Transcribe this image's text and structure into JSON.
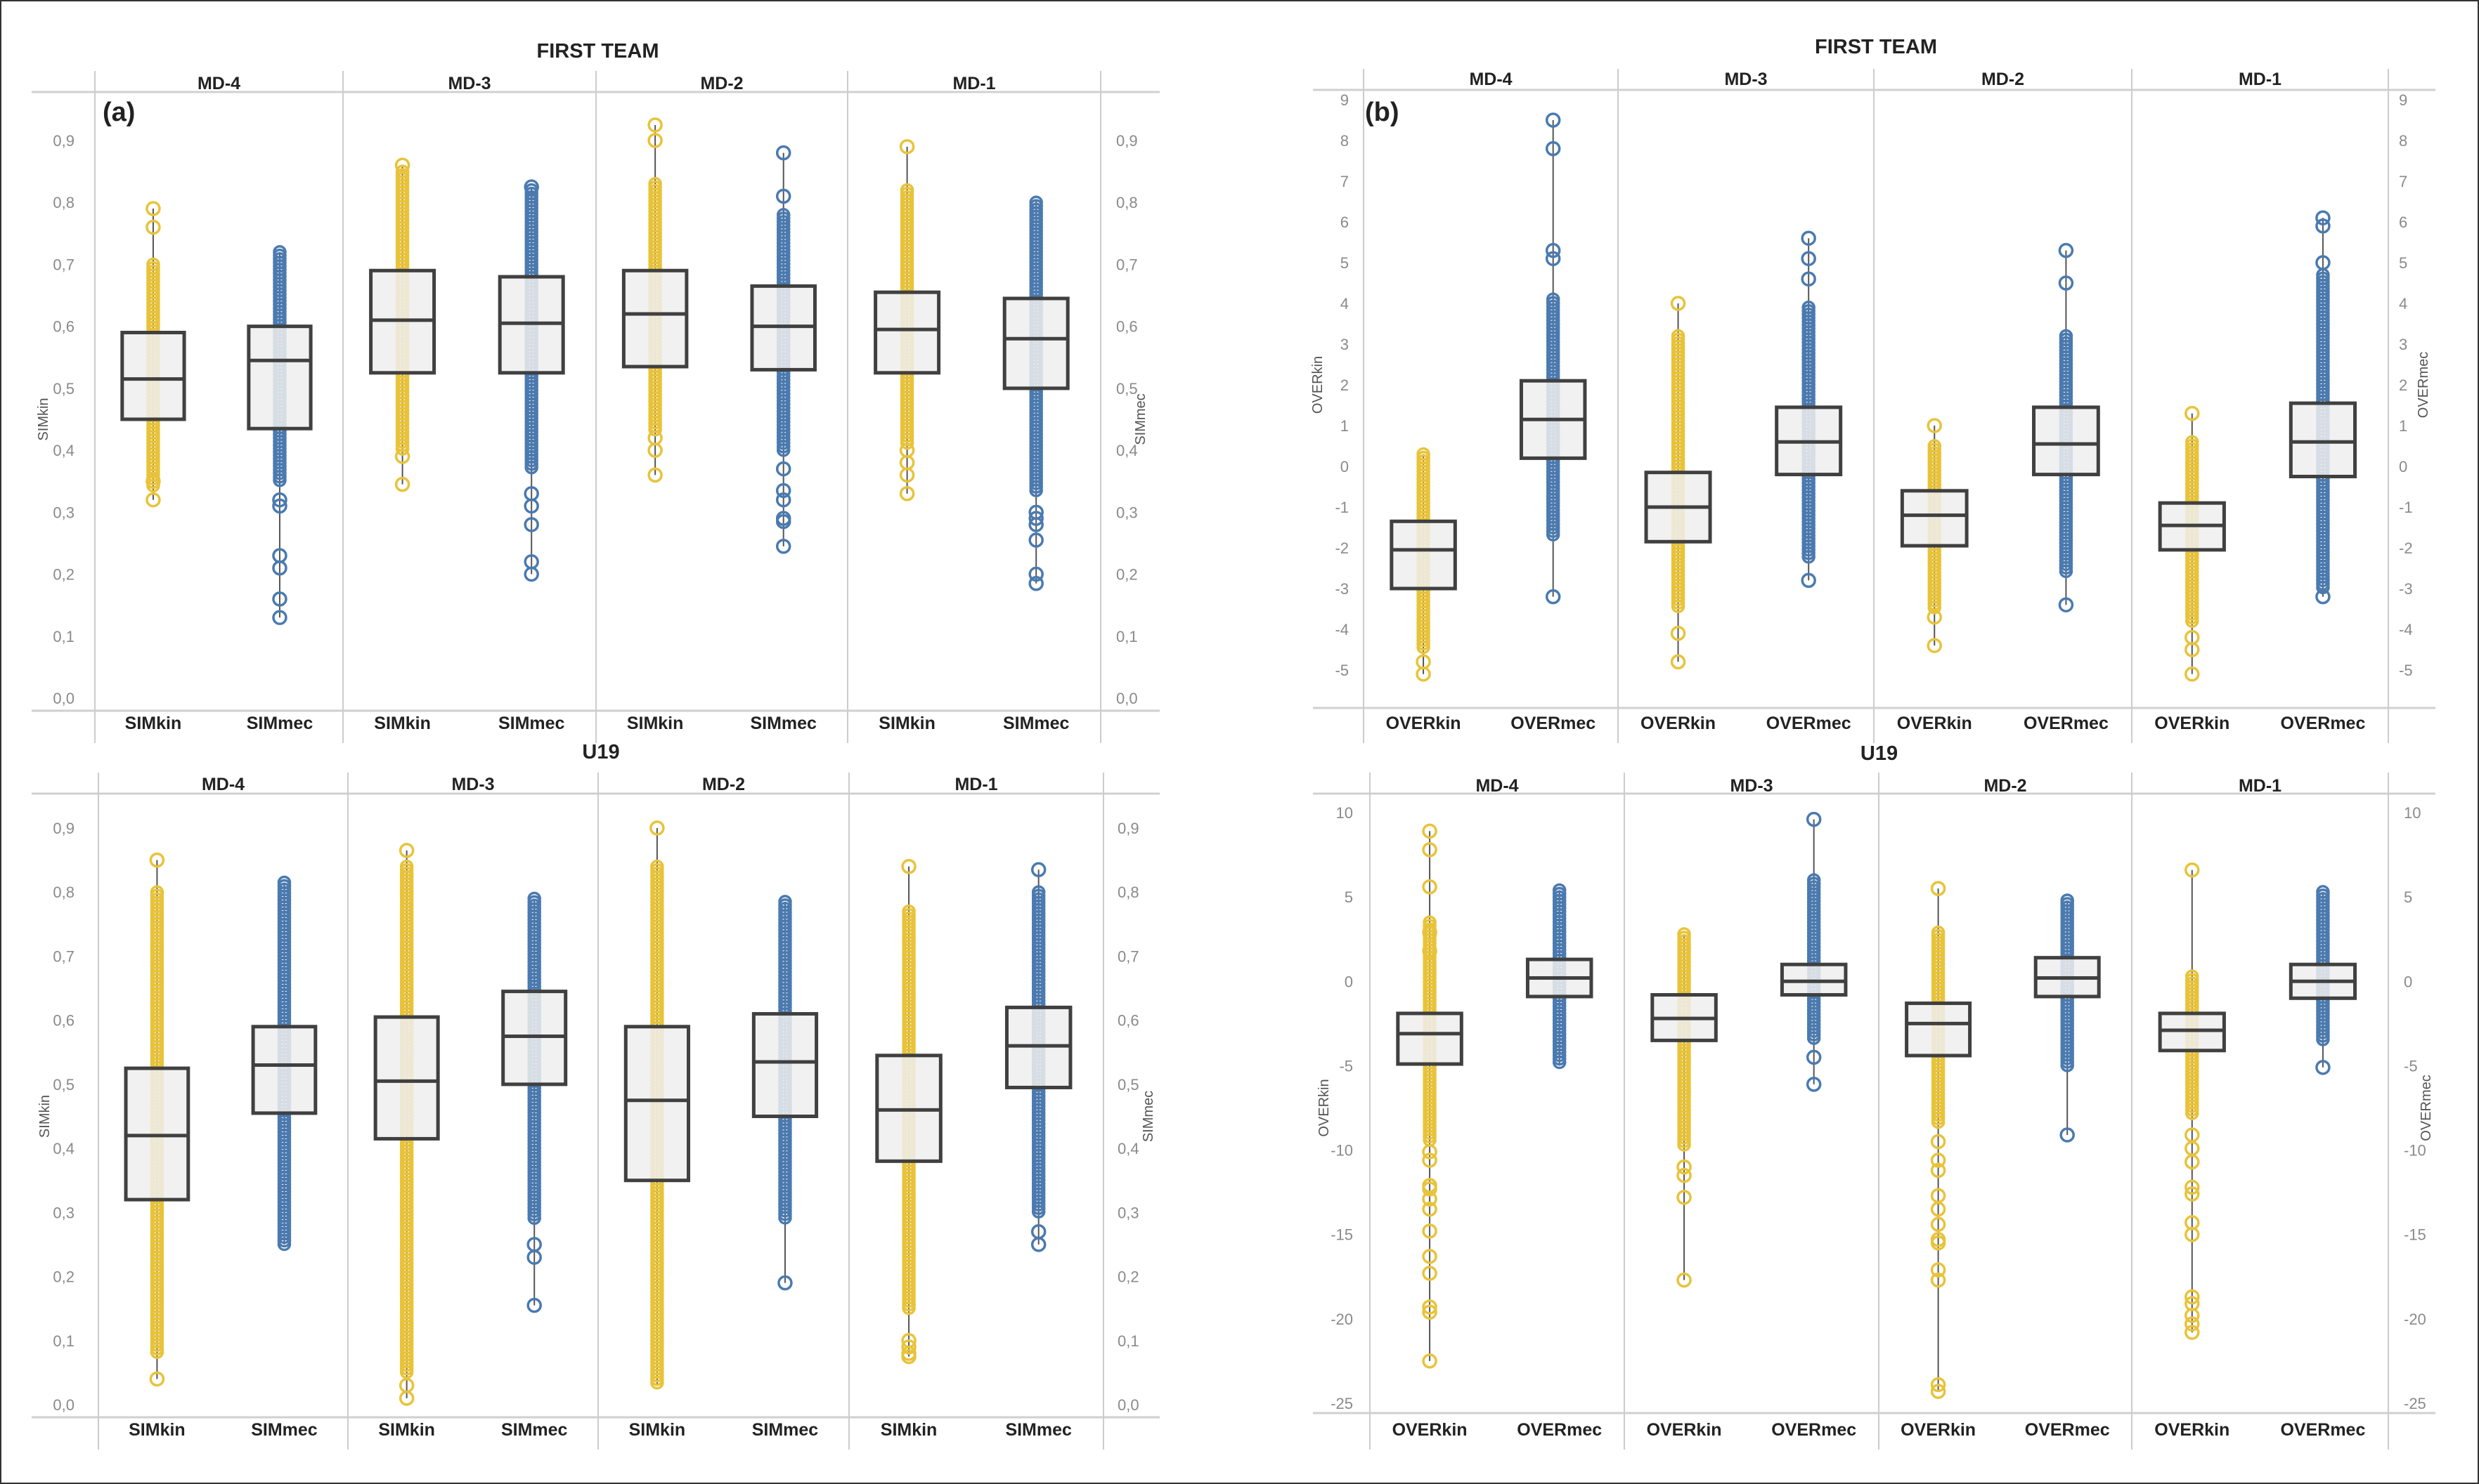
{
  "colors": {
    "kin": "#E8C33A",
    "mec": "#4A7AB0",
    "box_fill": "#EEEEEE",
    "box_stroke": "#404040",
    "grid": "#CCCCCC"
  },
  "chart_data": [
    {
      "type": "box",
      "letter": "(a)",
      "title": "FIRST TEAM",
      "ylabel_left": "SIMkin",
      "ylabel_right": "SIMmec",
      "ylim": [
        0,
        0.9
      ],
      "yticks": [
        0,
        0.1,
        0.2,
        0.3,
        0.4,
        0.5,
        0.6,
        0.7,
        0.8,
        0.9
      ],
      "yticklabels": [
        "0,0",
        "0,1",
        "0,2",
        "0,3",
        "0,4",
        "0,5",
        "0,6",
        "0,7",
        "0,8",
        "0,9"
      ],
      "groups": [
        {
          "label": "MD-4",
          "boxes": [
            {
              "label": "SIMkin",
              "series": "kin",
              "q1": 0.45,
              "median": 0.515,
              "q3": 0.59,
              "whisker_low": 0.32,
              "whisker_high": 0.79,
              "dense": [
                0.34,
                0.7
              ],
              "points": [
                0.32,
                0.35,
                0.76,
                0.79
              ]
            },
            {
              "label": "SIMmec",
              "series": "mec",
              "q1": 0.435,
              "median": 0.545,
              "q3": 0.6,
              "whisker_low": 0.13,
              "whisker_high": 0.72,
              "dense": [
                0.35,
                0.72
              ],
              "points": [
                0.13,
                0.16,
                0.21,
                0.23,
                0.31,
                0.32
              ]
            }
          ]
        },
        {
          "label": "MD-3",
          "boxes": [
            {
              "label": "SIMkin",
              "series": "kin",
              "q1": 0.525,
              "median": 0.61,
              "q3": 0.69,
              "whisker_low": 0.345,
              "whisker_high": 0.86,
              "dense": [
                0.4,
                0.85
              ],
              "points": [
                0.345,
                0.39,
                0.86
              ]
            },
            {
              "label": "SIMmec",
              "series": "mec",
              "q1": 0.525,
              "median": 0.605,
              "q3": 0.68,
              "whisker_low": 0.2,
              "whisker_high": 0.825,
              "dense": [
                0.37,
                0.82
              ],
              "points": [
                0.2,
                0.22,
                0.28,
                0.31,
                0.33,
                0.825
              ]
            }
          ]
        },
        {
          "label": "MD-2",
          "boxes": [
            {
              "label": "SIMkin",
              "series": "kin",
              "q1": 0.535,
              "median": 0.62,
              "q3": 0.69,
              "whisker_low": 0.36,
              "whisker_high": 0.925,
              "dense": [
                0.43,
                0.83
              ],
              "points": [
                0.36,
                0.4,
                0.42,
                0.9,
                0.925
              ]
            },
            {
              "label": "SIMmec",
              "series": "mec",
              "q1": 0.53,
              "median": 0.6,
              "q3": 0.665,
              "whisker_low": 0.245,
              "whisker_high": 0.88,
              "dense": [
                0.4,
                0.78
              ],
              "points": [
                0.245,
                0.285,
                0.29,
                0.32,
                0.335,
                0.37,
                0.81,
                0.88
              ]
            }
          ]
        },
        {
          "label": "MD-1",
          "boxes": [
            {
              "label": "SIMkin",
              "series": "kin",
              "q1": 0.525,
              "median": 0.595,
              "q3": 0.655,
              "whisker_low": 0.33,
              "whisker_high": 0.89,
              "dense": [
                0.41,
                0.82
              ],
              "points": [
                0.33,
                0.36,
                0.38,
                0.4,
                0.89
              ]
            },
            {
              "label": "SIMmec",
              "series": "mec",
              "q1": 0.5,
              "median": 0.58,
              "q3": 0.645,
              "whisker_low": 0.185,
              "whisker_high": 0.805,
              "dense": [
                0.33,
                0.8
              ],
              "points": [
                0.185,
                0.2,
                0.255,
                0.28,
                0.29,
                0.3
              ]
            }
          ]
        }
      ]
    },
    {
      "type": "box",
      "letter": "(b)",
      "title": "FIRST TEAM",
      "ylabel_left": "OVERkin",
      "ylabel_right": "OVERmec",
      "ylim": [
        -5,
        9
      ],
      "yticks": [
        -5,
        -4,
        -3,
        -2,
        -1,
        0,
        1,
        2,
        3,
        4,
        5,
        6,
        7,
        8,
        9
      ],
      "yticklabels": [
        "-5",
        "-4",
        "-3",
        "-2",
        "-1",
        "0",
        "1",
        "2",
        "3",
        "4",
        "5",
        "6",
        "7",
        "8",
        "9"
      ],
      "groups": [
        {
          "label": "MD-4",
          "boxes": [
            {
              "label": "OVERkin",
              "series": "kin",
              "q1": -3.0,
              "median": -2.05,
              "q3": -1.35,
              "whisker_low": -5.1,
              "whisker_high": 0.3,
              "dense": [
                -4.5,
                0.3
              ],
              "points": [
                -5.1,
                -4.8
              ]
            },
            {
              "label": "OVERmec",
              "series": "mec",
              "q1": 0.2,
              "median": 1.15,
              "q3": 2.1,
              "whisker_low": -3.2,
              "whisker_high": 8.5,
              "dense": [
                -1.7,
                4.1
              ],
              "points": [
                -3.2,
                5.1,
                5.3,
                7.8,
                8.5
              ]
            }
          ]
        },
        {
          "label": "MD-3",
          "boxes": [
            {
              "label": "OVERkin",
              "series": "kin",
              "q1": -1.85,
              "median": -1.0,
              "q3": -0.15,
              "whisker_low": -4.8,
              "whisker_high": 4.0,
              "dense": [
                -3.5,
                3.2
              ],
              "points": [
                -4.8,
                -4.1,
                4.0
              ]
            },
            {
              "label": "OVERmec",
              "series": "mec",
              "q1": -0.2,
              "median": 0.6,
              "q3": 1.45,
              "whisker_low": -2.8,
              "whisker_high": 5.6,
              "dense": [
                -2.3,
                3.9
              ],
              "points": [
                -2.8,
                4.6,
                5.1,
                5.6
              ]
            }
          ]
        },
        {
          "label": "MD-2",
          "boxes": [
            {
              "label": "OVERkin",
              "series": "kin",
              "q1": -1.95,
              "median": -1.2,
              "q3": -0.6,
              "whisker_low": -4.4,
              "whisker_high": 1.0,
              "dense": [
                -3.5,
                0.5
              ],
              "points": [
                -4.4,
                -3.7,
                1.0
              ]
            },
            {
              "label": "OVERmec",
              "series": "mec",
              "q1": -0.2,
              "median": 0.55,
              "q3": 1.45,
              "whisker_low": -3.4,
              "whisker_high": 5.3,
              "dense": [
                -2.6,
                3.2
              ],
              "points": [
                -3.4,
                4.5,
                5.3
              ]
            }
          ]
        },
        {
          "label": "MD-1",
          "boxes": [
            {
              "label": "OVERkin",
              "series": "kin",
              "q1": -2.05,
              "median": -1.45,
              "q3": -0.9,
              "whisker_low": -5.1,
              "whisker_high": 1.3,
              "dense": [
                -3.8,
                0.6
              ],
              "points": [
                -5.1,
                -4.5,
                -4.2,
                1.3
              ]
            },
            {
              "label": "OVERmec",
              "series": "mec",
              "q1": -0.25,
              "median": 0.6,
              "q3": 1.55,
              "whisker_low": -3.2,
              "whisker_high": 6.1,
              "dense": [
                -3.0,
                4.7
              ],
              "points": [
                -3.2,
                5.0,
                5.9,
                6.1
              ]
            }
          ]
        }
      ]
    },
    {
      "type": "box",
      "letter": "",
      "title": "U19",
      "ylabel_left": "SIMkin",
      "ylabel_right": "SIMmec",
      "ylim": [
        0,
        0.9
      ],
      "yticks": [
        0,
        0.1,
        0.2,
        0.3,
        0.4,
        0.5,
        0.6,
        0.7,
        0.8,
        0.9
      ],
      "yticklabels": [
        "0,0",
        "0,1",
        "0,2",
        "0,3",
        "0,4",
        "0,5",
        "0,6",
        "0,7",
        "0,8",
        "0,9"
      ],
      "groups": [
        {
          "label": "MD-4",
          "boxes": [
            {
              "label": "SIMkin",
              "series": "kin",
              "q1": 0.32,
              "median": 0.42,
              "q3": 0.525,
              "whisker_low": 0.04,
              "whisker_high": 0.85,
              "dense": [
                0.08,
                0.8
              ],
              "points": [
                0.04,
                0.85
              ]
            },
            {
              "label": "SIMmec",
              "series": "mec",
              "q1": 0.455,
              "median": 0.53,
              "q3": 0.59,
              "whisker_low": 0.25,
              "whisker_high": 0.815,
              "dense": [
                0.25,
                0.815
              ],
              "points": []
            }
          ]
        },
        {
          "label": "MD-3",
          "boxes": [
            {
              "label": "SIMkin",
              "series": "kin",
              "q1": 0.415,
              "median": 0.505,
              "q3": 0.605,
              "whisker_low": 0.01,
              "whisker_high": 0.865,
              "dense": [
                0.05,
                0.84
              ],
              "points": [
                0.01,
                0.03,
                0.865
              ]
            },
            {
              "label": "SIMmec",
              "series": "mec",
              "q1": 0.5,
              "median": 0.575,
              "q3": 0.645,
              "whisker_low": 0.155,
              "whisker_high": 0.79,
              "dense": [
                0.29,
                0.79
              ],
              "points": [
                0.155,
                0.23,
                0.25
              ]
            }
          ]
        },
        {
          "label": "MD-2",
          "boxes": [
            {
              "label": "SIMkin",
              "series": "kin",
              "q1": 0.35,
              "median": 0.475,
              "q3": 0.59,
              "whisker_low": 0.03,
              "whisker_high": 0.9,
              "dense": [
                0.03,
                0.84
              ],
              "points": [
                0.9
              ]
            },
            {
              "label": "SIMmec",
              "series": "mec",
              "q1": 0.45,
              "median": 0.535,
              "q3": 0.61,
              "whisker_low": 0.19,
              "whisker_high": 0.785,
              "dense": [
                0.29,
                0.785
              ],
              "points": [
                0.19
              ]
            }
          ]
        },
        {
          "label": "MD-1",
          "boxes": [
            {
              "label": "SIMkin",
              "series": "kin",
              "q1": 0.38,
              "median": 0.46,
              "q3": 0.545,
              "whisker_low": 0.075,
              "whisker_high": 0.84,
              "dense": [
                0.15,
                0.77
              ],
              "points": [
                0.075,
                0.08,
                0.09,
                0.1,
                0.84
              ]
            },
            {
              "label": "SIMmec",
              "series": "mec",
              "q1": 0.495,
              "median": 0.56,
              "q3": 0.62,
              "whisker_low": 0.25,
              "whisker_high": 0.835,
              "dense": [
                0.3,
                0.8
              ],
              "points": [
                0.25,
                0.27,
                0.835
              ]
            }
          ]
        }
      ]
    },
    {
      "type": "box",
      "letter": "",
      "title": "U19",
      "ylabel_left": "OVERkin",
      "ylabel_right": "OVERmec",
      "ylim": [
        -25,
        10
      ],
      "yticks": [
        -25,
        -20,
        -15,
        -10,
        -5,
        0,
        5,
        10
      ],
      "yticklabels": [
        "-25",
        "-20",
        "-15",
        "-10",
        "-5",
        "0",
        "5",
        "10"
      ],
      "groups": [
        {
          "label": "MD-4",
          "boxes": [
            {
              "label": "OVERkin",
              "series": "kin",
              "q1": -4.9,
              "median": -3.1,
              "q3": -1.9,
              "whisker_low": -22.5,
              "whisker_high": 8.9,
              "dense": [
                -9.5,
                3.5
              ],
              "points": [
                -22.5,
                -19.6,
                -19.3,
                -17.3,
                -16.3,
                -14.8,
                -13.5,
                -12.9,
                -12.3,
                -12.1,
                -10.6,
                -10.1,
                1.8,
                2.9,
                5.6,
                7.8,
                8.9
              ]
            },
            {
              "label": "OVERmec",
              "series": "mec",
              "q1": -0.9,
              "median": 0.2,
              "q3": 1.3,
              "whisker_low": -5.0,
              "whisker_high": 5.4,
              "dense": [
                -5.0,
                5.4
              ],
              "points": []
            }
          ]
        },
        {
          "label": "MD-3",
          "boxes": [
            {
              "label": "OVERkin",
              "series": "kin",
              "q1": -3.5,
              "median": -2.2,
              "q3": -0.8,
              "whisker_low": -17.7,
              "whisker_high": 2.8,
              "dense": [
                -9.8,
                2.8
              ],
              "points": [
                -17.7,
                -12.8,
                -11.5,
                -11.0
              ]
            },
            {
              "label": "OVERmec",
              "series": "mec",
              "q1": -0.8,
              "median": 0.0,
              "q3": 1.0,
              "whisker_low": -6.1,
              "whisker_high": 9.6,
              "dense": [
                -3.5,
                6.0
              ],
              "points": [
                -6.1,
                -4.5,
                9.6
              ]
            }
          ]
        },
        {
          "label": "MD-2",
          "boxes": [
            {
              "label": "OVERkin",
              "series": "kin",
              "q1": -4.4,
              "median": -2.5,
              "q3": -1.3,
              "whisker_low": -24.3,
              "whisker_high": 5.5,
              "dense": [
                -8.5,
                2.9
              ],
              "points": [
                -24.3,
                -23.9,
                -17.7,
                -17.1,
                -15.5,
                -15.3,
                -14.4,
                -13.5,
                -12.7,
                -11.2,
                -10.6,
                -9.5,
                5.5
              ]
            },
            {
              "label": "OVERmec",
              "series": "mec",
              "q1": -0.9,
              "median": 0.2,
              "q3": 1.4,
              "whisker_low": -9.1,
              "whisker_high": 4.8,
              "dense": [
                -5.0,
                4.8
              ],
              "points": [
                -9.1
              ]
            }
          ]
        },
        {
          "label": "MD-1",
          "boxes": [
            {
              "label": "OVERkin",
              "series": "kin",
              "q1": -4.1,
              "median": -2.9,
              "q3": -1.9,
              "whisker_low": -20.8,
              "whisker_high": 6.6,
              "dense": [
                -8.0,
                0.3
              ],
              "points": [
                -20.8,
                -20.3,
                -19.8,
                -19.1,
                -18.7,
                -15.0,
                -14.3,
                -12.6,
                -12.2,
                -10.7,
                -9.9,
                -9.1,
                6.6
              ]
            },
            {
              "label": "OVERmec",
              "series": "mec",
              "q1": -1.0,
              "median": 0.0,
              "q3": 1.0,
              "whisker_low": -5.1,
              "whisker_high": 5.3,
              "dense": [
                -3.5,
                5.3
              ],
              "points": [
                -5.1
              ]
            }
          ]
        }
      ]
    }
  ]
}
